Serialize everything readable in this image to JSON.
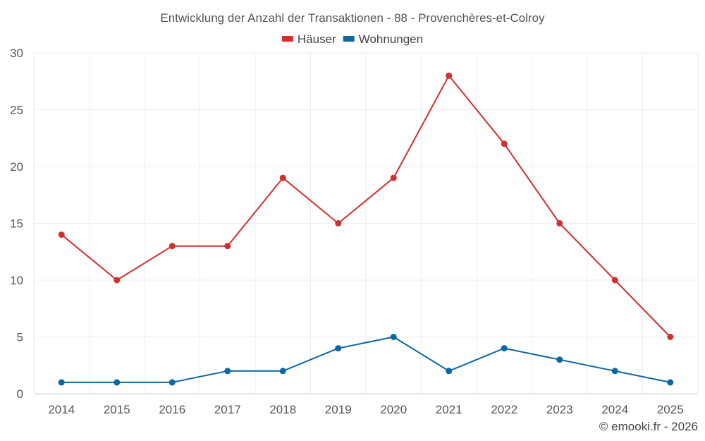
{
  "chart_data": {
    "type": "line",
    "title": "Entwicklung der Anzahl der Transaktionen - 88 - Provenchères-et-Colroy",
    "categories": [
      "2014",
      "2015",
      "2016",
      "2017",
      "2018",
      "2019",
      "2020",
      "2021",
      "2022",
      "2023",
      "2024",
      "2025"
    ],
    "series": [
      {
        "name": "Häuser",
        "color": "#d32f2f",
        "values": [
          14,
          10,
          13,
          13,
          19,
          15,
          19,
          28,
          22,
          15,
          10,
          5
        ]
      },
      {
        "name": "Wohnungen",
        "color": "#0d67a0",
        "values": [
          1,
          1,
          1,
          2,
          2,
          4,
          5,
          2,
          4,
          3,
          2,
          1
        ]
      }
    ],
    "yticks": [
      0,
      5,
      10,
      15,
      20,
      25,
      30
    ],
    "ylim": [
      0,
      30
    ],
    "grid": true,
    "legend": "top-center",
    "credit": "© emooki.fr - 2026"
  }
}
